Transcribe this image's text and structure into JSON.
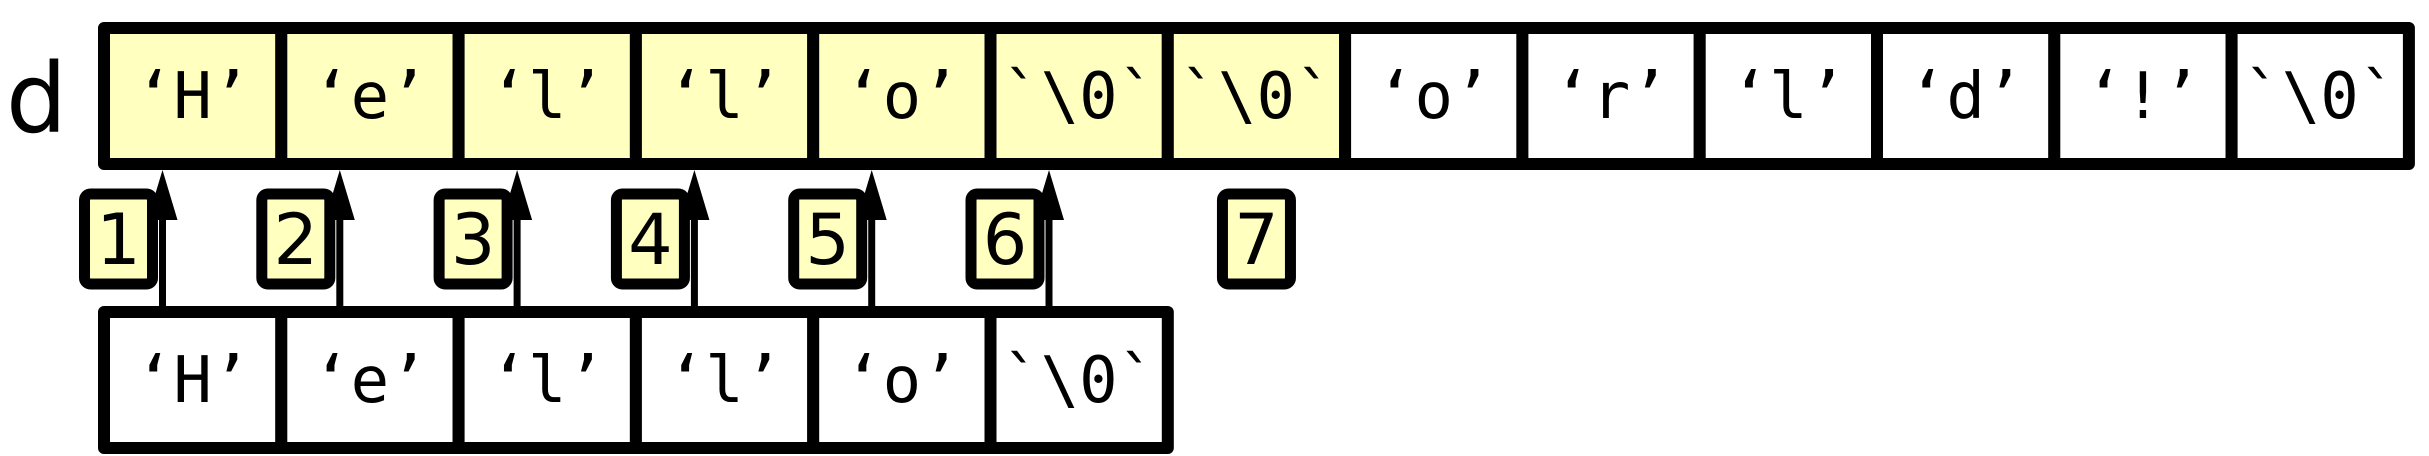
{
  "label": "d",
  "highlight_color": "#ffffc0",
  "plain_color": "#ffffff",
  "dest_cells": [
    {
      "text": "‘H’",
      "highlighted": true
    },
    {
      "text": "‘e’",
      "highlighted": true
    },
    {
      "text": "‘l’",
      "highlighted": true
    },
    {
      "text": "‘l’",
      "highlighted": true
    },
    {
      "text": "‘o’",
      "highlighted": true
    },
    {
      "text": "`\\0`",
      "highlighted": true
    },
    {
      "text": "`\\0`",
      "highlighted": true
    },
    {
      "text": "‘o’",
      "highlighted": false
    },
    {
      "text": "‘r’",
      "highlighted": false
    },
    {
      "text": "‘l’",
      "highlighted": false
    },
    {
      "text": "‘d’",
      "highlighted": false
    },
    {
      "text": "‘!’",
      "highlighted": false
    },
    {
      "text": "`\\0`",
      "highlighted": false
    }
  ],
  "src_cells": [
    {
      "text": "‘H’"
    },
    {
      "text": "‘e’"
    },
    {
      "text": "‘l’"
    },
    {
      "text": "‘l’"
    },
    {
      "text": "‘o’"
    },
    {
      "text": "`\\0`"
    }
  ],
  "steps": [
    {
      "number": "1",
      "has_arrow": true
    },
    {
      "number": "2",
      "has_arrow": true
    },
    {
      "number": "3",
      "has_arrow": true
    },
    {
      "number": "4",
      "has_arrow": true
    },
    {
      "number": "5",
      "has_arrow": true
    },
    {
      "number": "6",
      "has_arrow": true
    },
    {
      "number": "7",
      "has_arrow": false
    }
  ]
}
